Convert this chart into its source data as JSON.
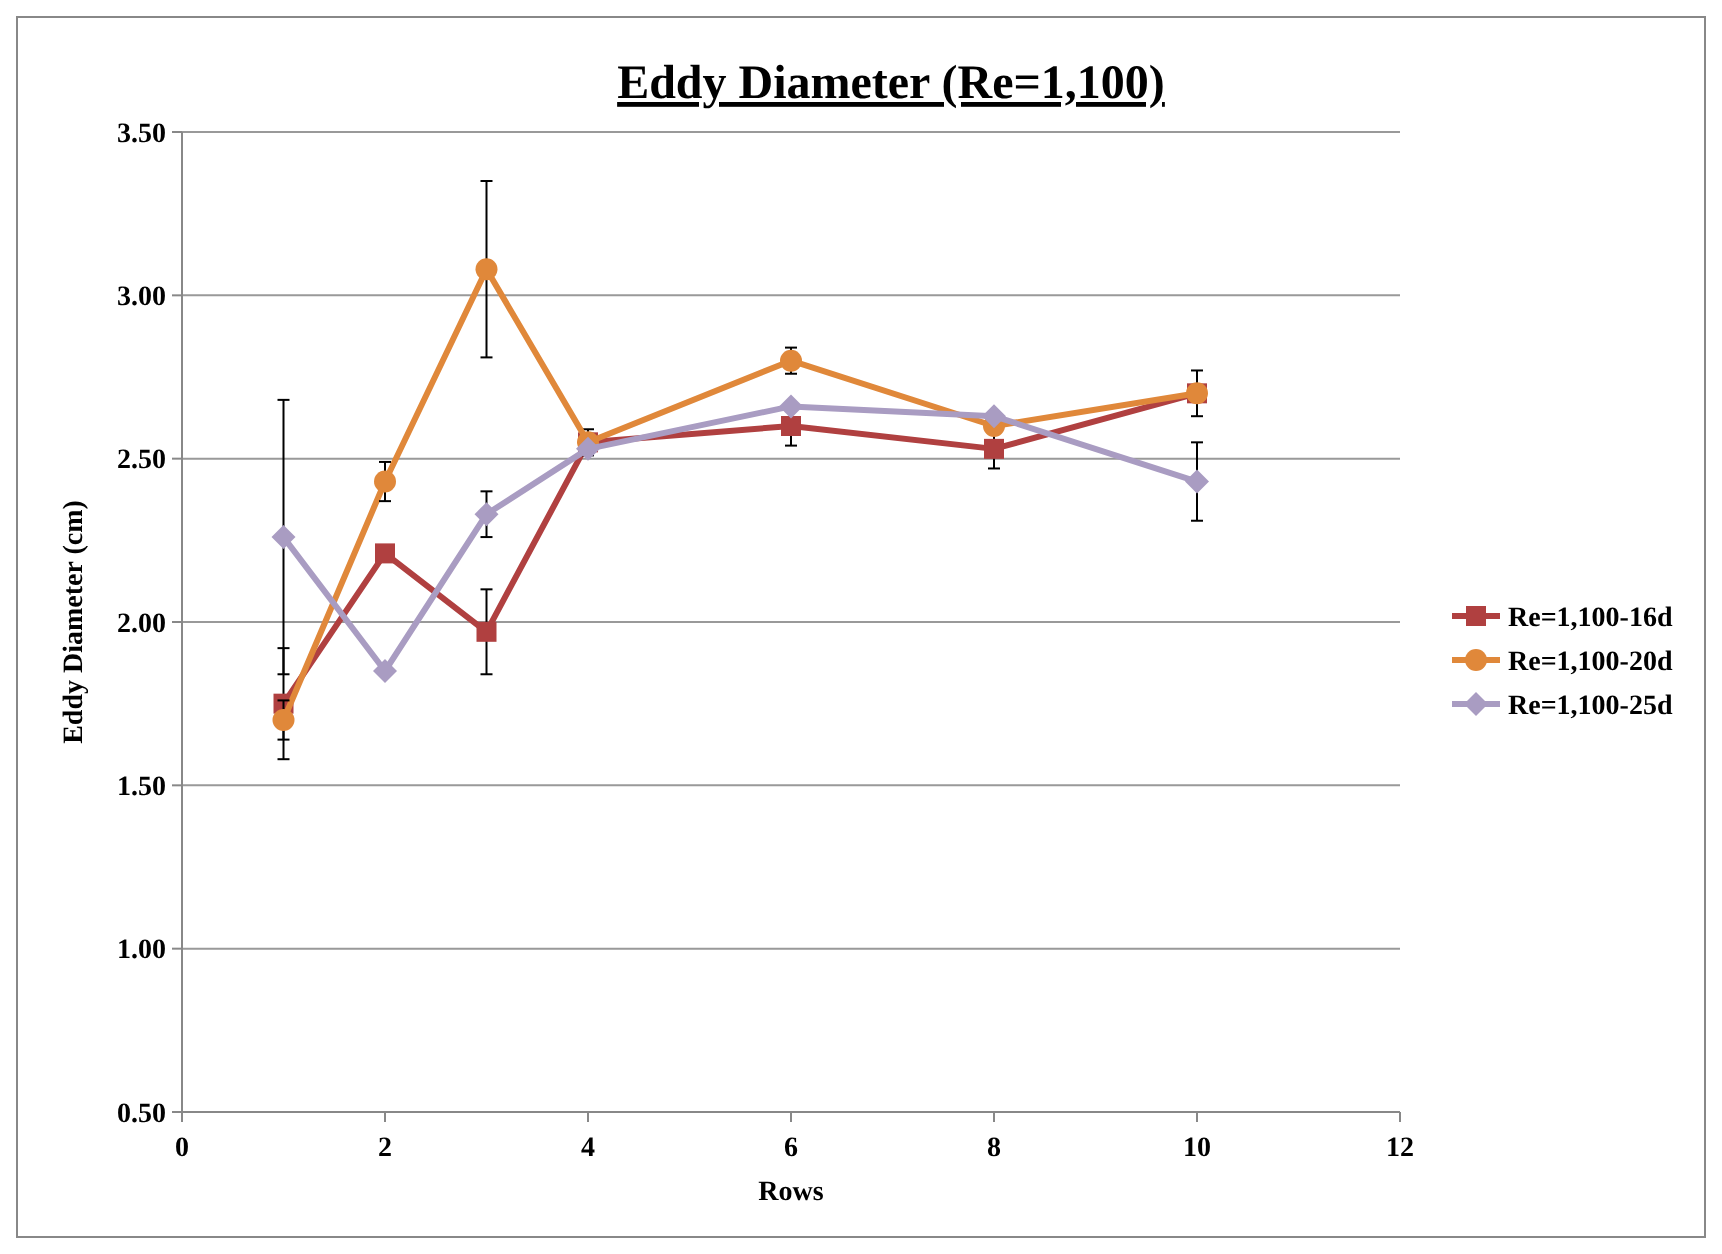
{
  "chart_data": {
    "type": "line",
    "title": "Eddy Diameter (Re=1,100)",
    "xlabel": "Rows",
    "ylabel": "Eddy Diameter (cm)",
    "xlim": [
      0,
      12
    ],
    "xticks": [
      0,
      2,
      4,
      6,
      8,
      10,
      12
    ],
    "ylim": [
      0.5,
      3.5
    ],
    "yticks": [
      {
        "value": 0.5,
        "label": "0.50"
      },
      {
        "value": 1,
        "label": "1.00"
      },
      {
        "value": 1.5,
        "label": "1.50"
      },
      {
        "value": 2,
        "label": "2.00"
      },
      {
        "value": 2.5,
        "label": "2.50"
      },
      {
        "value": 3,
        "label": "3.00"
      },
      {
        "value": 3.5,
        "label": "3.50"
      }
    ],
    "grid": "y",
    "legend": "right",
    "x": [
      1,
      2,
      3,
      4,
      6,
      8,
      10
    ],
    "series": [
      {
        "name": "Re=1,100-16d",
        "color": "#b04040",
        "marker": "square",
        "values": [
          1.75,
          2.21,
          1.97,
          2.55,
          2.6,
          2.53,
          2.7
        ],
        "errors": [
          0.17,
          null,
          0.13,
          0.04,
          0.06,
          0.06,
          0.07
        ]
      },
      {
        "name": "Re=1,100-20d",
        "color": "#e0883a",
        "marker": "circle",
        "values": [
          1.7,
          2.43,
          3.08,
          2.55,
          2.8,
          2.6,
          2.7
        ],
        "errors": [
          0.06,
          0.06,
          0.27,
          null,
          0.04,
          null,
          null
        ]
      },
      {
        "name": "Re=1,100-25d",
        "color": "#a99cc2",
        "marker": "diamond",
        "values": [
          2.26,
          1.85,
          2.33,
          2.53,
          2.66,
          2.63,
          2.43
        ],
        "errors": [
          0.42,
          null,
          0.07,
          null,
          null,
          null,
          0.12
        ]
      }
    ]
  }
}
